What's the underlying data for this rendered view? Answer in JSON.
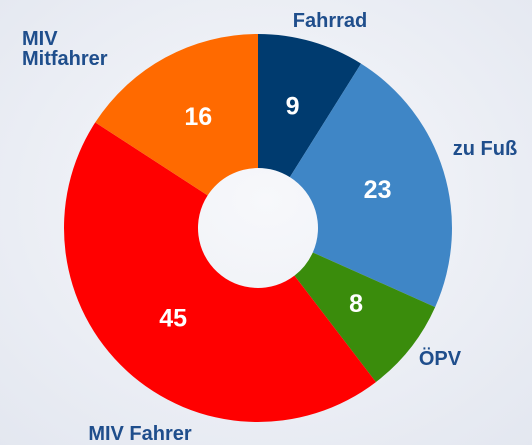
{
  "chart_data": {
    "type": "donut",
    "categories": [
      "Fahrrad",
      "zu Fuß",
      "ÖPV",
      "MIV Fahrer",
      "MIV\nMitfahrer"
    ],
    "values": [
      9,
      23,
      8,
      45,
      16
    ],
    "colors": [
      "#003b6f",
      "#3f86c6",
      "#3a8c0c",
      "#ff0000",
      "#ff6a00"
    ]
  }
}
